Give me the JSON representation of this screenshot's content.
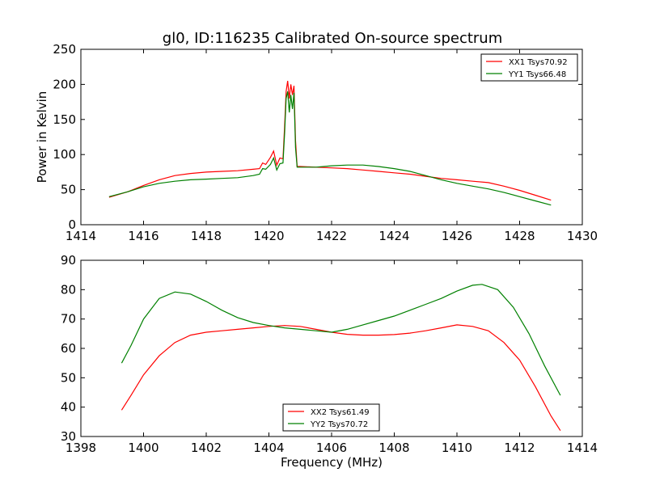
{
  "title": "gl0, ID:116235 Calibrated On-source spectrum",
  "chart_data": [
    {
      "type": "line",
      "ylabel": "Power in Kelvin",
      "xlabel": "",
      "xlim": [
        1414,
        1430
      ],
      "ylim": [
        0,
        250
      ],
      "xticks": [
        "1414",
        "1416",
        "1418",
        "1420",
        "1422",
        "1424",
        "1426",
        "1428",
        "1430"
      ],
      "yticks": [
        "0",
        "50",
        "100",
        "150",
        "200",
        "250"
      ],
      "legend_position": "top-right",
      "series": [
        {
          "name": "XX1 Tsys70.92",
          "color": "#ff0000",
          "points": [
            [
              1414.9,
              39
            ],
            [
              1415.5,
              47
            ],
            [
              1416,
              56
            ],
            [
              1416.5,
              64
            ],
            [
              1417,
              70
            ],
            [
              1417.5,
              73
            ],
            [
              1418,
              75
            ],
            [
              1418.5,
              76
            ],
            [
              1419,
              77
            ],
            [
              1419.5,
              79
            ],
            [
              1419.7,
              80
            ],
            [
              1419.8,
              88
            ],
            [
              1419.9,
              86
            ],
            [
              1420.05,
              96
            ],
            [
              1420.15,
              105
            ],
            [
              1420.25,
              85
            ],
            [
              1420.35,
              95
            ],
            [
              1420.45,
              94
            ],
            [
              1420.5,
              140
            ],
            [
              1420.55,
              190
            ],
            [
              1420.6,
              205
            ],
            [
              1420.65,
              180
            ],
            [
              1420.7,
              200
            ],
            [
              1420.75,
              185
            ],
            [
              1420.8,
              198
            ],
            [
              1420.85,
              120
            ],
            [
              1420.9,
              83
            ],
            [
              1421,
              83
            ],
            [
              1421.5,
              82
            ],
            [
              1422,
              81
            ],
            [
              1422.5,
              80
            ],
            [
              1423,
              78
            ],
            [
              1423.5,
              76
            ],
            [
              1424,
              74
            ],
            [
              1424.5,
              72
            ],
            [
              1425,
              69
            ],
            [
              1425.5,
              66
            ],
            [
              1426,
              64
            ],
            [
              1426.5,
              62
            ],
            [
              1427,
              60
            ],
            [
              1427.5,
              55
            ],
            [
              1428,
              49
            ],
            [
              1428.5,
              42
            ],
            [
              1429,
              35
            ]
          ]
        },
        {
          "name": "YY1 Tsys66.48",
          "color": "#008000",
          "points": [
            [
              1414.9,
              40
            ],
            [
              1415.5,
              47
            ],
            [
              1416,
              54
            ],
            [
              1416.5,
              59
            ],
            [
              1417,
              62
            ],
            [
              1417.5,
              64
            ],
            [
              1418,
              65
            ],
            [
              1418.5,
              66
            ],
            [
              1419,
              67
            ],
            [
              1419.5,
              70
            ],
            [
              1419.7,
              72
            ],
            [
              1419.8,
              80
            ],
            [
              1419.9,
              79
            ],
            [
              1420.05,
              86
            ],
            [
              1420.15,
              95
            ],
            [
              1420.25,
              78
            ],
            [
              1420.35,
              87
            ],
            [
              1420.45,
              88
            ],
            [
              1420.5,
              130
            ],
            [
              1420.55,
              180
            ],
            [
              1420.6,
              190
            ],
            [
              1420.65,
              160
            ],
            [
              1420.7,
              185
            ],
            [
              1420.75,
              165
            ],
            [
              1420.8,
              188
            ],
            [
              1420.85,
              110
            ],
            [
              1420.9,
              82
            ],
            [
              1421,
              82
            ],
            [
              1421.5,
              82
            ],
            [
              1422,
              84
            ],
            [
              1422.5,
              85
            ],
            [
              1423,
              85
            ],
            [
              1423.5,
              83
            ],
            [
              1424,
              80
            ],
            [
              1424.5,
              76
            ],
            [
              1425,
              70
            ],
            [
              1425.5,
              64
            ],
            [
              1426,
              59
            ],
            [
              1426.5,
              55
            ],
            [
              1427,
              51
            ],
            [
              1427.5,
              46
            ],
            [
              1428,
              40
            ],
            [
              1428.5,
              34
            ],
            [
              1429,
              28
            ]
          ]
        }
      ]
    },
    {
      "type": "line",
      "ylabel": "",
      "xlabel": "Frequency (MHz)",
      "xlim": [
        1398,
        1414
      ],
      "ylim": [
        30,
        90
      ],
      "xticks": [
        "1398",
        "1400",
        "1402",
        "1404",
        "1406",
        "1408",
        "1410",
        "1412",
        "1414"
      ],
      "yticks": [
        "30",
        "40",
        "50",
        "60",
        "70",
        "80",
        "90"
      ],
      "legend_position": "bottom-center",
      "series": [
        {
          "name": "XX2 Tsys61.49",
          "color": "#ff0000",
          "points": [
            [
              1399.3,
              39
            ],
            [
              1399.6,
              44
            ],
            [
              1400,
              51
            ],
            [
              1400.5,
              57.5
            ],
            [
              1401,
              62
            ],
            [
              1401.5,
              64.5
            ],
            [
              1402,
              65.5
            ],
            [
              1402.5,
              66
            ],
            [
              1403,
              66.5
            ],
            [
              1403.5,
              67
            ],
            [
              1404,
              67.5
            ],
            [
              1404.5,
              67.8
            ],
            [
              1405,
              67.5
            ],
            [
              1405.5,
              66.5
            ],
            [
              1406,
              65.5
            ],
            [
              1406.5,
              64.8
            ],
            [
              1407,
              64.5
            ],
            [
              1407.5,
              64.5
            ],
            [
              1408,
              64.7
            ],
            [
              1408.5,
              65.2
            ],
            [
              1409,
              66
            ],
            [
              1409.5,
              67
            ],
            [
              1410,
              68
            ],
            [
              1410.5,
              67.5
            ],
            [
              1411,
              66
            ],
            [
              1411.5,
              62
            ],
            [
              1412,
              56
            ],
            [
              1412.5,
              47
            ],
            [
              1413,
              37
            ],
            [
              1413.3,
              32
            ]
          ]
        },
        {
          "name": "YY2 Tsys70.72",
          "color": "#008000",
          "points": [
            [
              1399.3,
              55
            ],
            [
              1399.6,
              61
            ],
            [
              1400,
              70
            ],
            [
              1400.5,
              77
            ],
            [
              1401,
              79.2
            ],
            [
              1401.5,
              78.5
            ],
            [
              1402,
              76
            ],
            [
              1402.5,
              73
            ],
            [
              1403,
              70.5
            ],
            [
              1403.5,
              68.8
            ],
            [
              1404,
              67.8
            ],
            [
              1404.5,
              67
            ],
            [
              1405,
              66.5
            ],
            [
              1405.5,
              66
            ],
            [
              1406,
              65.5
            ],
            [
              1406.5,
              66.5
            ],
            [
              1407,
              68
            ],
            [
              1407.5,
              69.5
            ],
            [
              1408,
              71
            ],
            [
              1408.5,
              73
            ],
            [
              1409,
              75
            ],
            [
              1409.5,
              77
            ],
            [
              1410,
              79.5
            ],
            [
              1410.5,
              81.5
            ],
            [
              1410.8,
              81.8
            ],
            [
              1411.3,
              80
            ],
            [
              1411.8,
              74
            ],
            [
              1412.3,
              65
            ],
            [
              1412.8,
              54
            ],
            [
              1413.3,
              44
            ]
          ]
        }
      ]
    }
  ]
}
